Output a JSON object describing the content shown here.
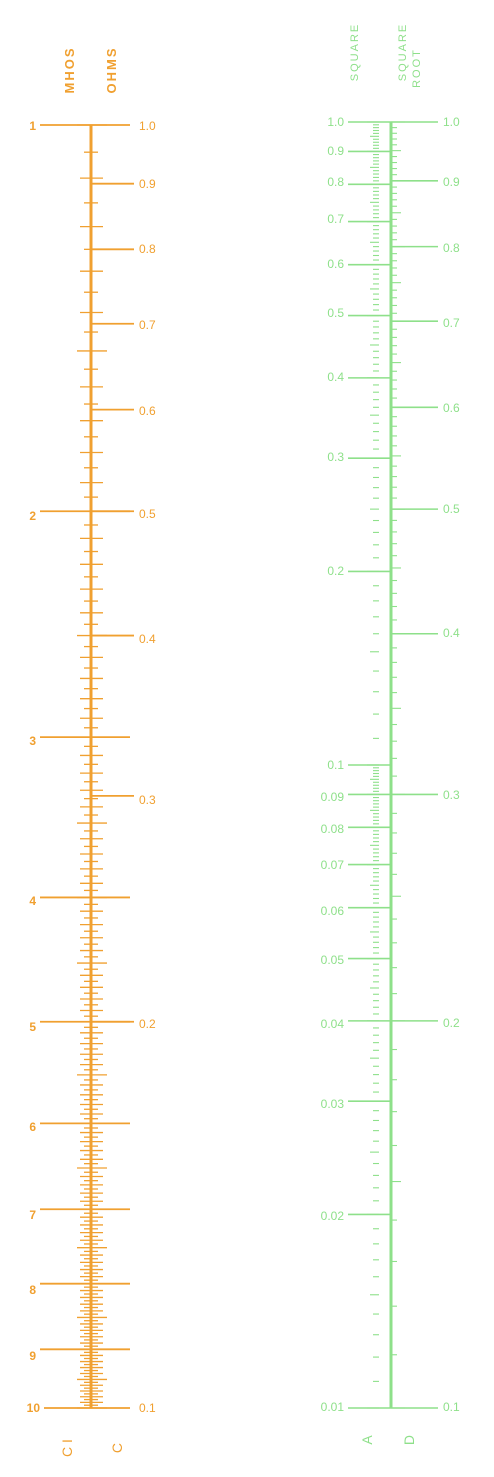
{
  "colors": {
    "orange": "#F0A030",
    "green": "#8EE08A"
  },
  "orange_scale": {
    "header_mhos": "MHOS",
    "header_ohms": "OHMS",
    "left_labels": [
      "1",
      "2",
      "3",
      "4",
      "5",
      "6",
      "7",
      "8",
      "9",
      "10"
    ],
    "right_labels": [
      "1.0",
      "0.9",
      "0.8",
      "0.7",
      "0.6",
      "0.5",
      "0.4",
      "0.3",
      "0.2",
      "0.1"
    ],
    "bottom_left": "C I",
    "bottom_right": "C"
  },
  "green_scale": {
    "header_square": "SQUARE",
    "header_square_root_line1": "SQUARE",
    "header_square_root_line2": "ROOT",
    "left_labels": [
      "1.0",
      "0.9",
      "0.8",
      "0.7",
      "0.6",
      "0.5",
      "0.4",
      "0.3",
      "0.2",
      "0.1",
      "0.09",
      "0.08",
      "0.07",
      "0.06",
      "0.05",
      "0.04",
      "0.03",
      "0.02",
      "0.01"
    ],
    "right_labels": [
      "1.0",
      "0.9",
      "0.8",
      "0.7",
      "0.6",
      "0.5",
      "0.4",
      "0.3",
      "0.2",
      "0.1"
    ],
    "bottom_left": "A",
    "bottom_right": "D"
  }
}
